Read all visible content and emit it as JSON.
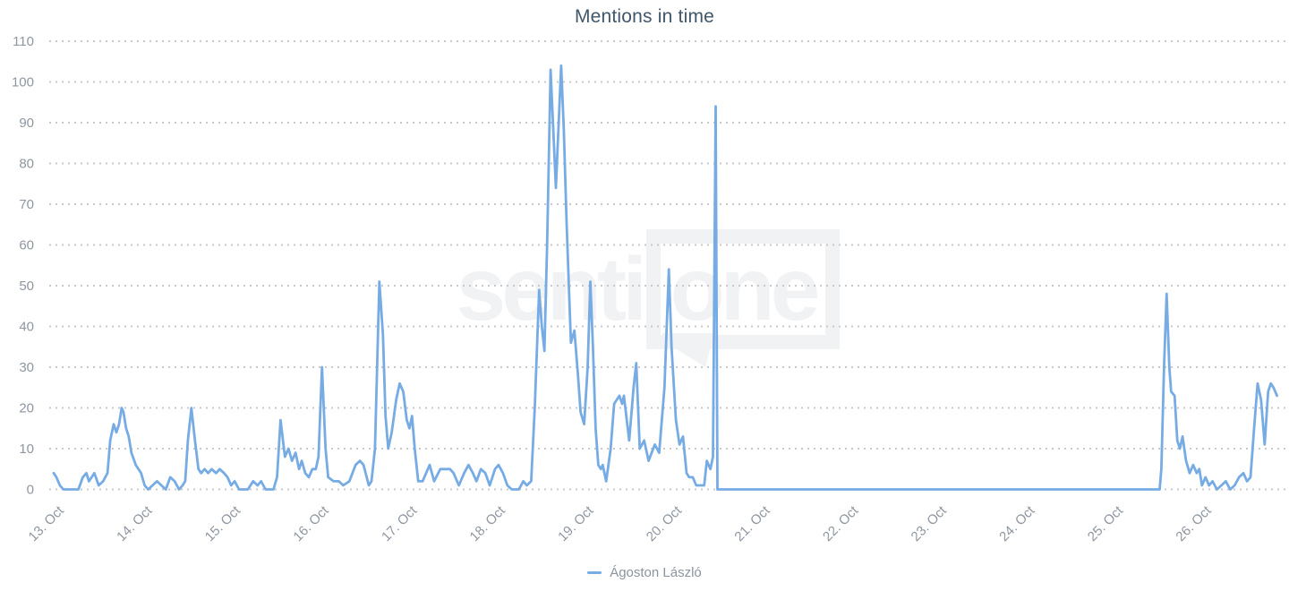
{
  "title": {
    "text": "Mentions in time",
    "color": "#40566a"
  },
  "watermark": {
    "left_text": "senti",
    "boxed_text": "one",
    "color": "#f1f2f4"
  },
  "legend": {
    "position": "bottom-center",
    "label_color": "#8b949f"
  },
  "axes": {
    "y": {
      "label_color": "#8e96a1",
      "gridline_color": "#c8c8c8",
      "gridline_style": "dotted"
    },
    "x": {
      "label_color": "#8e96a1",
      "label_rotation_deg": -45
    }
  },
  "chart_data": {
    "type": "line",
    "title": "Mentions in time",
    "xlabel": "",
    "ylabel": "",
    "x_unit": "day of October (fractional day = time of day)",
    "x_tick_labels": [
      "13. Oct",
      "14. Oct",
      "15. Oct",
      "16. Oct",
      "17. Oct",
      "18. Oct",
      "19. Oct",
      "20. Oct",
      "21. Oct",
      "22. Oct",
      "23. Oct",
      "24. Oct",
      "25. Oct",
      "26. Oct"
    ],
    "x_tick_days": [
      13,
      14,
      15,
      16,
      17,
      18,
      19,
      20,
      21,
      22,
      23,
      24,
      25,
      26
    ],
    "x_range_days": [
      12.95,
      26.97
    ],
    "y_ticks": [
      0,
      10,
      20,
      30,
      40,
      50,
      60,
      70,
      80,
      90,
      100,
      110
    ],
    "ylim": [
      0,
      110
    ],
    "grid": "horizontal-dotted",
    "legend_position": "bottom-center",
    "series": [
      {
        "name": "Ágoston László",
        "color": "#77abe4",
        "points": [
          [
            13.0,
            4
          ],
          [
            13.03,
            3
          ],
          [
            13.07,
            1
          ],
          [
            13.11,
            0
          ],
          [
            13.28,
            0
          ],
          [
            13.33,
            3
          ],
          [
            13.37,
            4
          ],
          [
            13.4,
            2
          ],
          [
            13.43,
            3
          ],
          [
            13.46,
            4
          ],
          [
            13.51,
            1
          ],
          [
            13.56,
            2
          ],
          [
            13.61,
            4
          ],
          [
            13.64,
            12
          ],
          [
            13.68,
            16
          ],
          [
            13.71,
            14
          ],
          [
            13.74,
            16
          ],
          [
            13.77,
            20
          ],
          [
            13.79,
            19
          ],
          [
            13.82,
            15
          ],
          [
            13.85,
            13
          ],
          [
            13.88,
            9
          ],
          [
            13.93,
            6
          ],
          [
            13.99,
            4
          ],
          [
            14.03,
            1
          ],
          [
            14.07,
            0
          ],
          [
            14.12,
            1
          ],
          [
            14.17,
            2
          ],
          [
            14.22,
            1
          ],
          [
            14.27,
            0
          ],
          [
            14.32,
            3
          ],
          [
            14.37,
            2
          ],
          [
            14.42,
            0
          ],
          [
            14.46,
            1
          ],
          [
            14.49,
            2
          ],
          [
            14.52,
            12
          ],
          [
            14.56,
            20
          ],
          [
            14.6,
            12
          ],
          [
            14.64,
            5
          ],
          [
            14.67,
            4
          ],
          [
            14.71,
            5
          ],
          [
            14.75,
            4
          ],
          [
            14.79,
            5
          ],
          [
            14.84,
            4
          ],
          [
            14.88,
            5
          ],
          [
            14.93,
            4
          ],
          [
            14.97,
            3
          ],
          [
            15.01,
            1
          ],
          [
            15.05,
            2
          ],
          [
            15.1,
            0
          ],
          [
            15.2,
            0
          ],
          [
            15.26,
            2
          ],
          [
            15.31,
            1
          ],
          [
            15.35,
            2
          ],
          [
            15.4,
            0
          ],
          [
            15.49,
            0
          ],
          [
            15.53,
            3
          ],
          [
            15.57,
            17
          ],
          [
            15.62,
            8
          ],
          [
            15.66,
            10
          ],
          [
            15.7,
            7
          ],
          [
            15.74,
            9
          ],
          [
            15.78,
            5
          ],
          [
            15.81,
            7
          ],
          [
            15.85,
            4
          ],
          [
            15.89,
            3
          ],
          [
            15.93,
            5
          ],
          [
            15.97,
            5
          ],
          [
            16.0,
            8
          ],
          [
            16.04,
            30
          ],
          [
            16.08,
            10
          ],
          [
            16.11,
            3
          ],
          [
            16.17,
            2
          ],
          [
            16.23,
            2
          ],
          [
            16.28,
            1
          ],
          [
            16.35,
            2
          ],
          [
            16.42,
            6
          ],
          [
            16.47,
            7
          ],
          [
            16.51,
            6
          ],
          [
            16.57,
            1
          ],
          [
            16.6,
            2
          ],
          [
            16.64,
            10
          ],
          [
            16.69,
            51
          ],
          [
            16.73,
            38
          ],
          [
            16.76,
            18
          ],
          [
            16.79,
            10
          ],
          [
            16.83,
            14
          ],
          [
            16.88,
            22
          ],
          [
            16.92,
            26
          ],
          [
            16.96,
            24
          ],
          [
            17.0,
            17
          ],
          [
            17.03,
            15
          ],
          [
            17.06,
            18
          ],
          [
            17.09,
            10
          ],
          [
            17.13,
            2
          ],
          [
            17.18,
            2
          ],
          [
            17.26,
            6
          ],
          [
            17.31,
            2
          ],
          [
            17.38,
            5
          ],
          [
            17.43,
            5
          ],
          [
            17.49,
            5
          ],
          [
            17.53,
            4
          ],
          [
            17.59,
            1
          ],
          [
            17.65,
            4
          ],
          [
            17.7,
            6
          ],
          [
            17.75,
            4
          ],
          [
            17.79,
            2
          ],
          [
            17.84,
            5
          ],
          [
            17.89,
            4
          ],
          [
            17.94,
            1
          ],
          [
            18.0,
            5
          ],
          [
            18.04,
            6
          ],
          [
            18.09,
            4
          ],
          [
            18.14,
            1
          ],
          [
            18.19,
            0
          ],
          [
            18.27,
            0
          ],
          [
            18.32,
            2
          ],
          [
            18.36,
            1
          ],
          [
            18.41,
            2
          ],
          [
            18.45,
            20
          ],
          [
            18.5,
            49
          ],
          [
            18.53,
            40
          ],
          [
            18.56,
            34
          ],
          [
            18.59,
            60
          ],
          [
            18.63,
            103
          ],
          [
            18.69,
            74
          ],
          [
            18.75,
            104
          ],
          [
            18.78,
            88
          ],
          [
            18.81,
            66
          ],
          [
            18.84,
            48
          ],
          [
            18.86,
            36
          ],
          [
            18.9,
            39
          ],
          [
            18.94,
            28
          ],
          [
            18.97,
            19
          ],
          [
            19.01,
            16
          ],
          [
            19.05,
            30
          ],
          [
            19.08,
            51
          ],
          [
            19.11,
            35
          ],
          [
            19.14,
            15
          ],
          [
            19.17,
            6
          ],
          [
            19.2,
            5
          ],
          [
            19.22,
            6
          ],
          [
            19.26,
            2
          ],
          [
            19.31,
            10
          ],
          [
            19.35,
            21
          ],
          [
            19.41,
            23
          ],
          [
            19.44,
            21
          ],
          [
            19.46,
            23
          ],
          [
            19.52,
            12
          ],
          [
            19.57,
            25
          ],
          [
            19.6,
            31
          ],
          [
            19.64,
            10
          ],
          [
            19.69,
            12
          ],
          [
            19.74,
            7
          ],
          [
            19.81,
            11
          ],
          [
            19.86,
            9
          ],
          [
            19.92,
            25
          ],
          [
            19.97,
            54
          ],
          [
            20.0,
            35
          ],
          [
            20.05,
            17
          ],
          [
            20.09,
            11
          ],
          [
            20.13,
            13
          ],
          [
            20.17,
            4
          ],
          [
            20.2,
            3
          ],
          [
            20.24,
            3
          ],
          [
            20.28,
            1
          ],
          [
            20.33,
            1
          ],
          [
            20.37,
            1
          ],
          [
            20.4,
            7
          ],
          [
            20.44,
            5
          ],
          [
            20.47,
            8
          ],
          [
            20.5,
            94
          ],
          [
            20.52,
            0
          ],
          [
            20.6,
            0
          ],
          [
            21.0,
            0
          ],
          [
            21.5,
            0
          ],
          [
            22.0,
            0
          ],
          [
            22.5,
            0
          ],
          [
            23.0,
            0
          ],
          [
            23.5,
            0
          ],
          [
            24.0,
            0
          ],
          [
            24.5,
            0
          ],
          [
            25.0,
            0
          ],
          [
            25.4,
            0
          ],
          [
            25.53,
            0
          ],
          [
            25.55,
            5
          ],
          [
            25.58,
            30
          ],
          [
            25.61,
            48
          ],
          [
            25.64,
            30
          ],
          [
            25.66,
            24
          ],
          [
            25.7,
            23
          ],
          [
            25.73,
            12
          ],
          [
            25.76,
            10
          ],
          [
            25.79,
            13
          ],
          [
            25.83,
            7
          ],
          [
            25.87,
            4
          ],
          [
            25.91,
            6
          ],
          [
            25.95,
            4
          ],
          [
            25.98,
            5
          ],
          [
            26.01,
            1
          ],
          [
            26.05,
            3
          ],
          [
            26.09,
            1
          ],
          [
            26.13,
            2
          ],
          [
            26.18,
            0
          ],
          [
            26.23,
            1
          ],
          [
            26.28,
            2
          ],
          [
            26.33,
            0
          ],
          [
            26.38,
            1
          ],
          [
            26.43,
            3
          ],
          [
            26.48,
            4
          ],
          [
            26.52,
            2
          ],
          [
            26.56,
            3
          ],
          [
            26.6,
            15
          ],
          [
            26.64,
            26
          ],
          [
            26.68,
            22
          ],
          [
            26.72,
            11
          ],
          [
            26.76,
            24
          ],
          [
            26.79,
            26
          ],
          [
            26.82,
            25
          ],
          [
            26.86,
            23
          ]
        ]
      }
    ]
  }
}
